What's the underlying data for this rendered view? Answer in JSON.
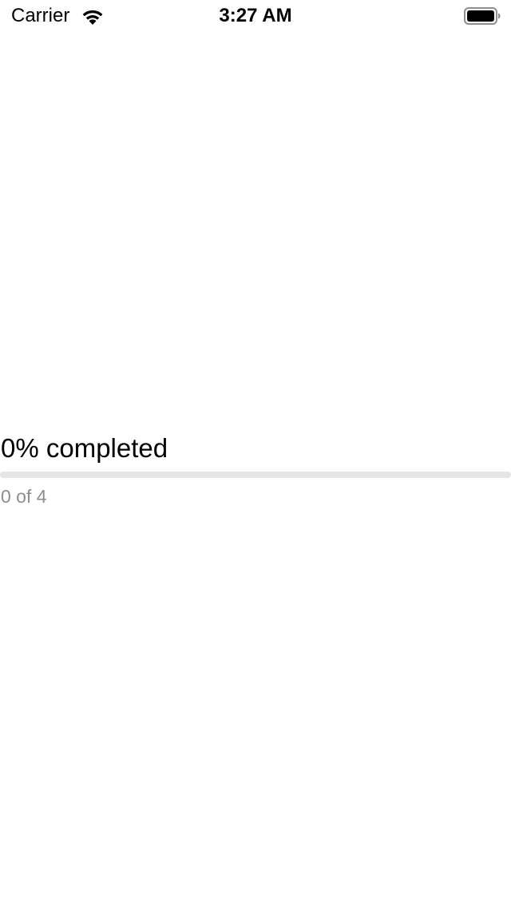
{
  "status_bar": {
    "carrier": "Carrier",
    "time": "3:27 AM",
    "wifi_icon": "wifi-icon",
    "battery_icon": "battery-icon"
  },
  "progress": {
    "title": "0% completed",
    "count_text": "0 of 4",
    "completed": 0,
    "total": 4,
    "fraction": 0,
    "track_color": "#e5e5e5",
    "fill_color": "#007aff",
    "count_color": "#8e8e93"
  }
}
